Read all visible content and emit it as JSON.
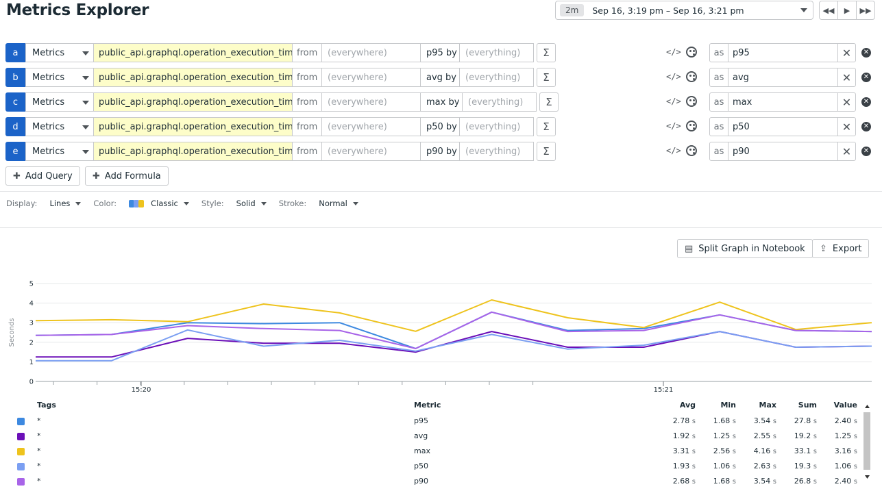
{
  "header": {
    "title": "Metrics Explorer",
    "time_badge": "2m",
    "time_range": "Sep 16, 3:19 pm – Sep 16, 3:21 pm"
  },
  "queries": [
    {
      "letter": "a",
      "source": "Metrics",
      "metric": "public_api.graphql.operation_execution_time",
      "from": "from",
      "where": "(everywhere)",
      "agg": "p95 by",
      "by": "(everything)",
      "as": "as",
      "alias": "p95"
    },
    {
      "letter": "b",
      "source": "Metrics",
      "metric": "public_api.graphql.operation_execution_time",
      "from": "from",
      "where": "(everywhere)",
      "agg": "avg by",
      "by": "(everything)",
      "as": "as",
      "alias": "avg"
    },
    {
      "letter": "c",
      "source": "Metrics",
      "metric": "public_api.graphql.operation_execution_time",
      "from": "from",
      "where": "(everywhere)",
      "agg": "max by",
      "by": "(everything)",
      "as": "as",
      "alias": "max"
    },
    {
      "letter": "d",
      "source": "Metrics",
      "metric": "public_api.graphql.operation_execution_time",
      "from": "from",
      "where": "(everywhere)",
      "agg": "p50 by",
      "by": "(everything)",
      "as": "as",
      "alias": "p50"
    },
    {
      "letter": "e",
      "source": "Metrics",
      "metric": "public_api.graphql.operation_execution_time",
      "from": "from",
      "where": "(everywhere)",
      "agg": "p90 by",
      "by": "(everything)",
      "as": "as",
      "alias": "p90"
    }
  ],
  "buttons": {
    "add_query": "Add Query",
    "add_formula": "Add Formula",
    "split_graph": "Split Graph in Notebook",
    "export": "Export"
  },
  "display": {
    "display_label": "Display:",
    "display_value": "Lines",
    "color_label": "Color:",
    "color_value": "Classic",
    "style_label": "Style:",
    "style_value": "Solid",
    "stroke_label": "Stroke:",
    "stroke_value": "Normal"
  },
  "chart_data": {
    "type": "line",
    "ylabel": "Seconds",
    "ylim": [
      0,
      5
    ],
    "yticks": [
      "0",
      "1",
      "2",
      "3",
      "4",
      "5"
    ],
    "xtick_labels": [
      "15:20",
      "15:21"
    ],
    "x": [
      "15:19:40",
      "15:19:50",
      "15:20:00",
      "15:20:10",
      "15:20:20",
      "15:20:30",
      "15:20:40",
      "15:20:50",
      "15:21:00",
      "15:21:10",
      "15:21:20",
      "15:21:30"
    ],
    "grid": true,
    "series": [
      {
        "name": "p95",
        "color": "#3d89e0",
        "values": [
          2.35,
          2.4,
          3.0,
          2.95,
          3.0,
          1.68,
          3.54,
          2.6,
          2.7,
          3.4,
          2.6,
          2.55
        ]
      },
      {
        "name": "avg",
        "color": "#6b0fb8",
        "values": [
          1.25,
          1.25,
          2.2,
          1.95,
          1.95,
          1.5,
          2.55,
          1.75,
          1.75,
          2.55,
          1.75,
          1.8
        ]
      },
      {
        "name": "max",
        "color": "#eec31d",
        "values": [
          3.1,
          3.15,
          3.05,
          3.95,
          3.5,
          2.56,
          4.16,
          3.25,
          2.75,
          4.05,
          2.65,
          3.0
        ]
      },
      {
        "name": "p50",
        "color": "#7b9ff2",
        "values": [
          1.06,
          1.06,
          2.63,
          1.8,
          2.1,
          1.55,
          2.4,
          1.65,
          1.85,
          2.55,
          1.75,
          1.8
        ]
      },
      {
        "name": "p90",
        "color": "#a864e8",
        "values": [
          2.35,
          2.4,
          2.85,
          2.7,
          2.6,
          1.68,
          3.54,
          2.55,
          2.6,
          3.4,
          2.6,
          2.55
        ]
      }
    ]
  },
  "legend": {
    "headers": {
      "tags": "Tags",
      "metric": "Metric",
      "avg": "Avg",
      "min": "Min",
      "max": "Max",
      "sum": "Sum",
      "value": "Value"
    },
    "rows": [
      {
        "tag": "*",
        "metric": "p95",
        "color": "#3d89e0",
        "avg": "2.78",
        "min": "1.68",
        "max": "3.54",
        "sum": "27.8",
        "value": "2.40",
        "unit": "s"
      },
      {
        "tag": "*",
        "metric": "avg",
        "color": "#6b0fb8",
        "avg": "1.92",
        "min": "1.25",
        "max": "2.55",
        "sum": "19.2",
        "value": "1.25",
        "unit": "s"
      },
      {
        "tag": "*",
        "metric": "max",
        "color": "#eec31d",
        "avg": "3.31",
        "min": "2.56",
        "max": "4.16",
        "sum": "33.1",
        "value": "3.16",
        "unit": "s"
      },
      {
        "tag": "*",
        "metric": "p50",
        "color": "#7b9ff2",
        "avg": "1.93",
        "min": "1.06",
        "max": "2.63",
        "sum": "19.3",
        "value": "1.06",
        "unit": "s"
      },
      {
        "tag": "*",
        "metric": "p90",
        "color": "#a864e8",
        "avg": "2.68",
        "min": "1.68",
        "max": "3.54",
        "sum": "26.8",
        "value": "2.40",
        "unit": "s"
      }
    ]
  }
}
